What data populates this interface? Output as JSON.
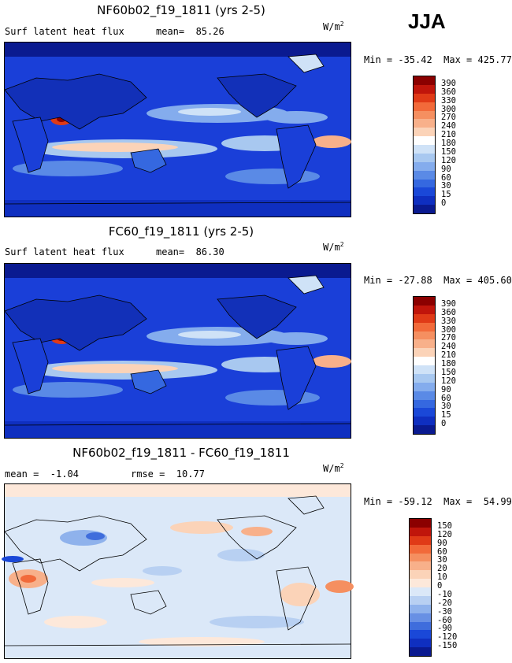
{
  "season": "JJA",
  "panels": [
    {
      "title": "NF60b02_f19_1811 (yrs 2-5)",
      "left_label": "Surf latent heat flux",
      "right_label": "mean=  85.26",
      "units_base": "W/m",
      "units_exp": "2",
      "min_max": "Min = -35.42  Max = 425.77",
      "legend": [
        "390",
        "360",
        "330",
        "300",
        "270",
        "240",
        "210",
        "180",
        "150",
        "120",
        "90",
        "60",
        "30",
        "15",
        "0"
      ],
      "colors": [
        "#8b0000",
        "#c0150b",
        "#e03a17",
        "#f26a3a",
        "#f58f60",
        "#f8b08a",
        "#fbd3b8",
        "#ffffff",
        "#cfe2f7",
        "#a8c8f0",
        "#84aced",
        "#5a8ae6",
        "#3568e0",
        "#1a48d8",
        "#0f2fc0",
        "#0a1a90"
      ]
    },
    {
      "title": "FC60_f19_1811 (yrs 2-5)",
      "left_label": "Surf latent heat flux",
      "right_label": "mean=  86.30",
      "units_base": "W/m",
      "units_exp": "2",
      "min_max": "Min = -27.88  Max = 405.60",
      "legend": [
        "390",
        "360",
        "330",
        "300",
        "270",
        "240",
        "210",
        "180",
        "150",
        "120",
        "90",
        "60",
        "30",
        "15",
        "0"
      ],
      "colors": [
        "#8b0000",
        "#c0150b",
        "#e03a17",
        "#f26a3a",
        "#f58f60",
        "#f8b08a",
        "#fbd3b8",
        "#ffffff",
        "#cfe2f7",
        "#a8c8f0",
        "#84aced",
        "#5a8ae6",
        "#3568e0",
        "#1a48d8",
        "#0f2fc0",
        "#0a1a90"
      ]
    },
    {
      "title": "NF60b02_f19_1811 - FC60_f19_1811",
      "left_label": "mean =  -1.04",
      "right_label": "rmse =  10.77",
      "units_base": "W/m",
      "units_exp": "2",
      "min_max": "Min = -59.12  Max =  54.99",
      "legend": [
        "150",
        "120",
        "90",
        "60",
        "30",
        "20",
        "10",
        "0",
        "-10",
        "-20",
        "-30",
        "-60",
        "-90",
        "-120",
        "-150"
      ],
      "colors": [
        "#8b0000",
        "#c0150b",
        "#e03a17",
        "#f26a3a",
        "#f58f60",
        "#f8b08a",
        "#fbd3b8",
        "#fde8da",
        "#dbe8f8",
        "#b8d0f2",
        "#8fb2ec",
        "#6890e4",
        "#3f6ddc",
        "#1a48d8",
        "#0f2fc0",
        "#0a1a90"
      ]
    }
  ]
}
